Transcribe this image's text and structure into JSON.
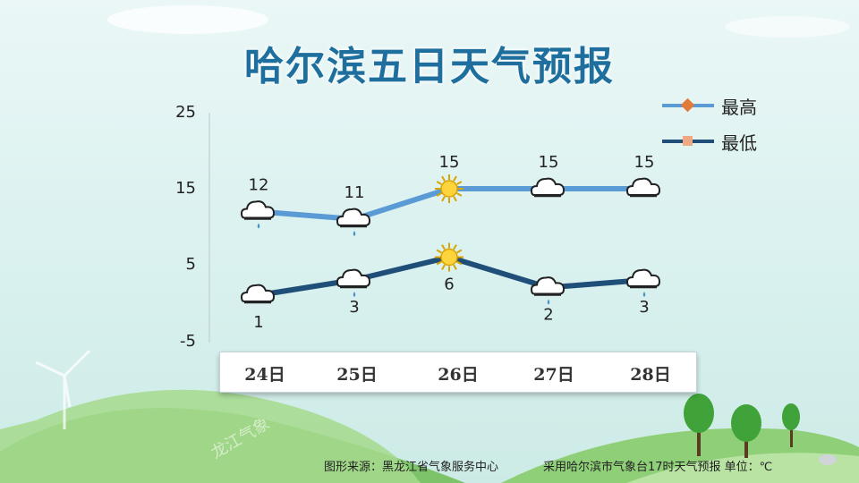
{
  "title": "哈尔滨五日天气预报",
  "watermark": "龙江气象",
  "legend": [
    {
      "label": "最高",
      "color": "#5b9bd5",
      "marker": "diamond",
      "marker_color": "#e07b39"
    },
    {
      "label": "最低",
      "color": "#1f4e79",
      "marker": "square",
      "marker_color": "#f0a882"
    }
  ],
  "footer": {
    "source": "图形来源：黑龙江省气象服务中心",
    "note": "采用哈尔滨市气象台17时天气预报 单位：℃"
  },
  "chart_data": {
    "type": "line",
    "categories": [
      "24日",
      "25日",
      "26日",
      "27日",
      "28日"
    ],
    "y_ticks": [
      25,
      15,
      5,
      -5
    ],
    "ylim": [
      -5,
      25
    ],
    "series": [
      {
        "name": "最高",
        "values": [
          12,
          11,
          15,
          15,
          15
        ],
        "color": "#5b9bd5",
        "icons": [
          "rain-icon",
          "rain-icon",
          "sun-icon",
          "cloud-icon",
          "cloud-icon"
        ]
      },
      {
        "name": "最低",
        "values": [
          1,
          3,
          6,
          2,
          3
        ],
        "color": "#1f4e79",
        "icons": [
          "cloud-icon",
          "rain-icon",
          "sun-icon",
          "rain-icon",
          "rain-icon"
        ]
      }
    ]
  }
}
